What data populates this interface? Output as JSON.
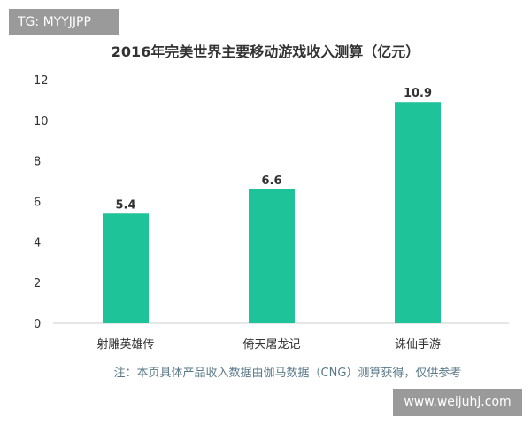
{
  "badge": {
    "text": "TG: MYYJJPP"
  },
  "watermark": {
    "text": "www.weijuhj.com"
  },
  "footnote": "注：本页具体产品收入数据由伽马数据（CNG）测算获得，仅供参考",
  "colors": {
    "bar": "#1ec39a",
    "grid": "#e6e6e6",
    "axis": "#cccccc",
    "text": "#333333"
  },
  "chart_data": {
    "type": "bar",
    "title": "2016年完美世界主要移动游戏收入测算（亿元）",
    "categories": [
      "射雕英雄传",
      "倚天屠龙记",
      "诛仙手游"
    ],
    "values": [
      5.4,
      6.6,
      10.9
    ],
    "data_labels": [
      "5.4",
      "6.6",
      "10.9"
    ],
    "ylim": [
      0,
      12
    ],
    "yticks": [
      0,
      2,
      4,
      6,
      8,
      10,
      12
    ],
    "grid": false,
    "xlabel": "",
    "ylabel": ""
  }
}
